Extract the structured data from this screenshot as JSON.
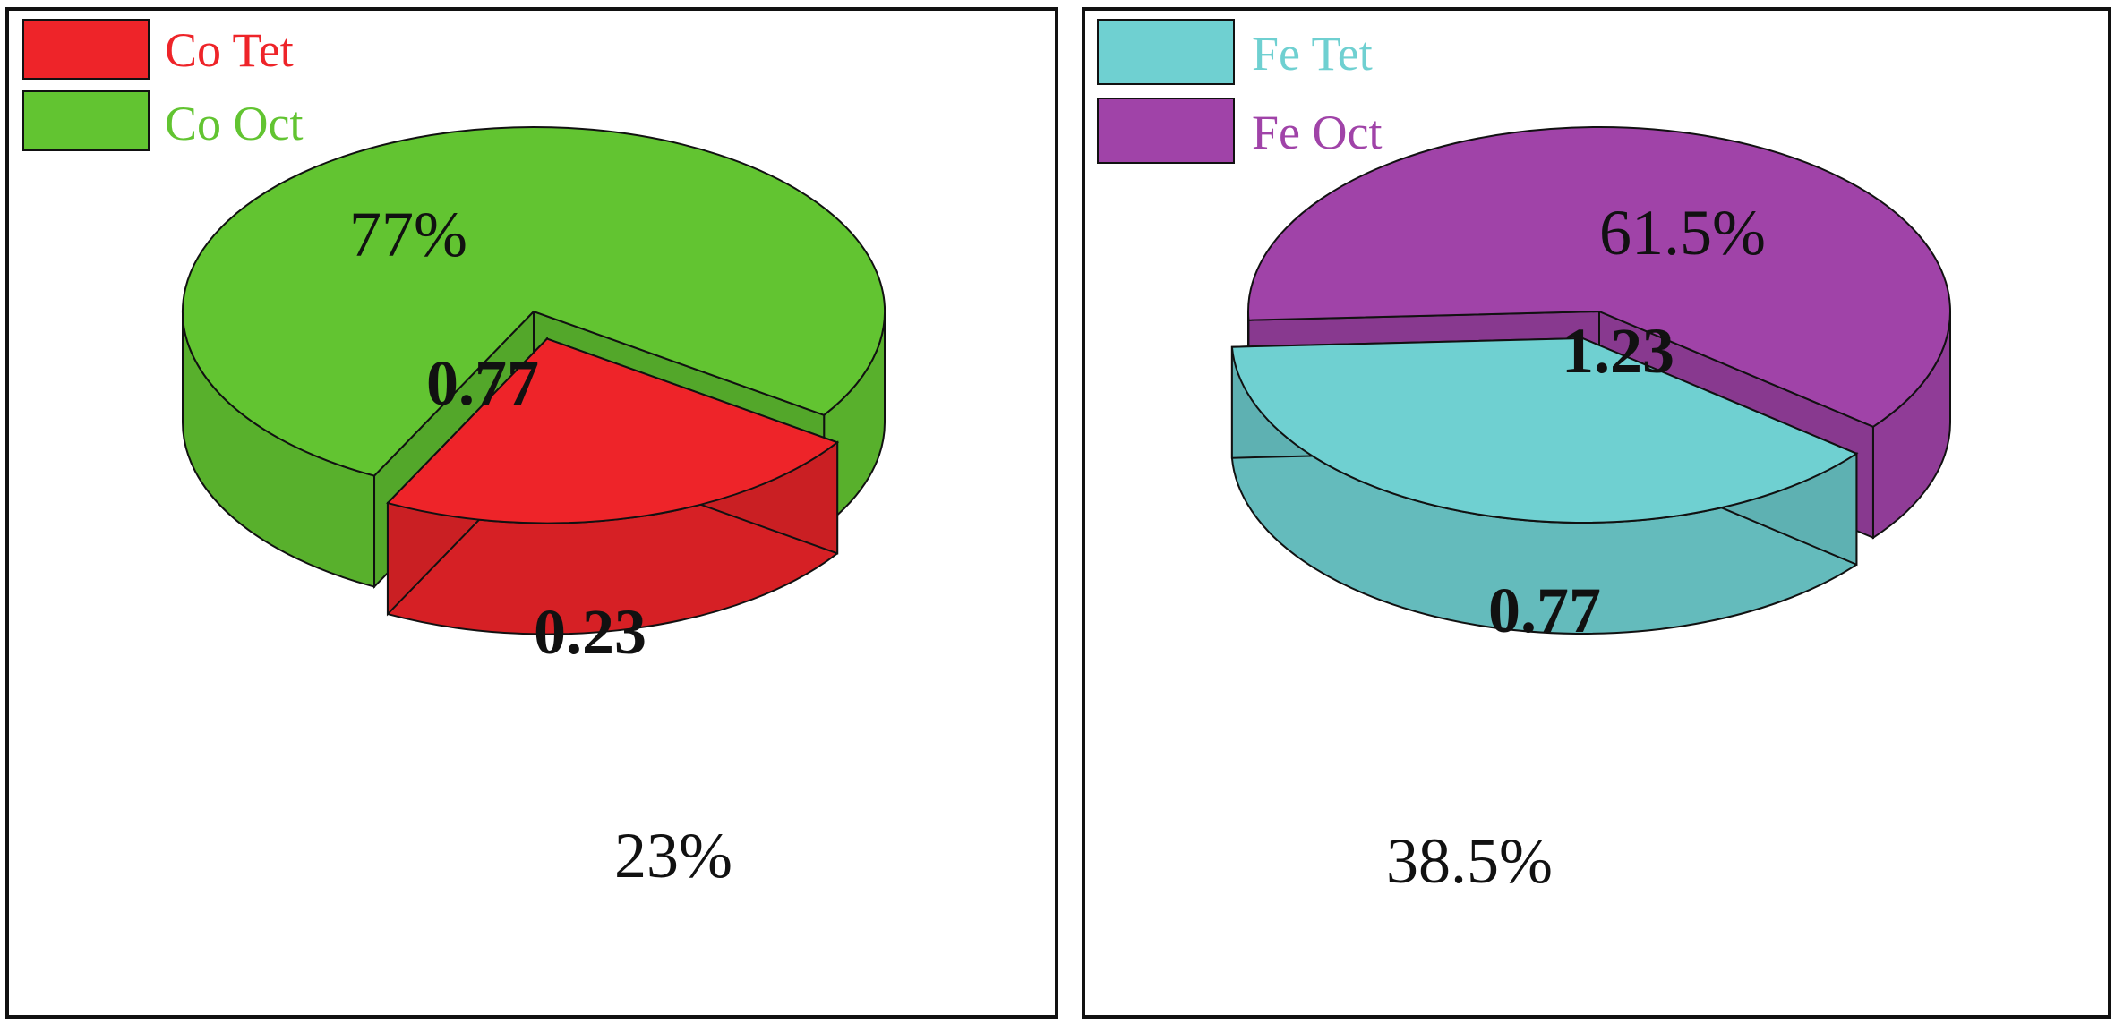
{
  "chart_data": [
    {
      "type": "pie",
      "style": "3d-exploded",
      "slices": [
        {
          "name": "Co Tet",
          "value": 0.23,
          "percent_label": "23%",
          "value_label": "0.23",
          "color": "#EE2429",
          "exploded": true
        },
        {
          "name": "Co Oct",
          "value": 0.77,
          "percent_label": "77%",
          "value_label": "0.77",
          "color": "#62C431",
          "exploded": false
        }
      ],
      "legend_placement": "top-left"
    },
    {
      "type": "pie",
      "style": "3d-exploded",
      "slices": [
        {
          "name": "Fe Tet",
          "value": 0.77,
          "percent_label": "38.5%",
          "value_label": "0.77",
          "color": "#6FD0D1",
          "exploded": true
        },
        {
          "name": "Fe Oct",
          "value": 1.23,
          "percent_label": "61.5%",
          "value_label": "1.23",
          "color": "#A043A8",
          "exploded": false
        }
      ],
      "legend_placement": "top-left"
    }
  ]
}
